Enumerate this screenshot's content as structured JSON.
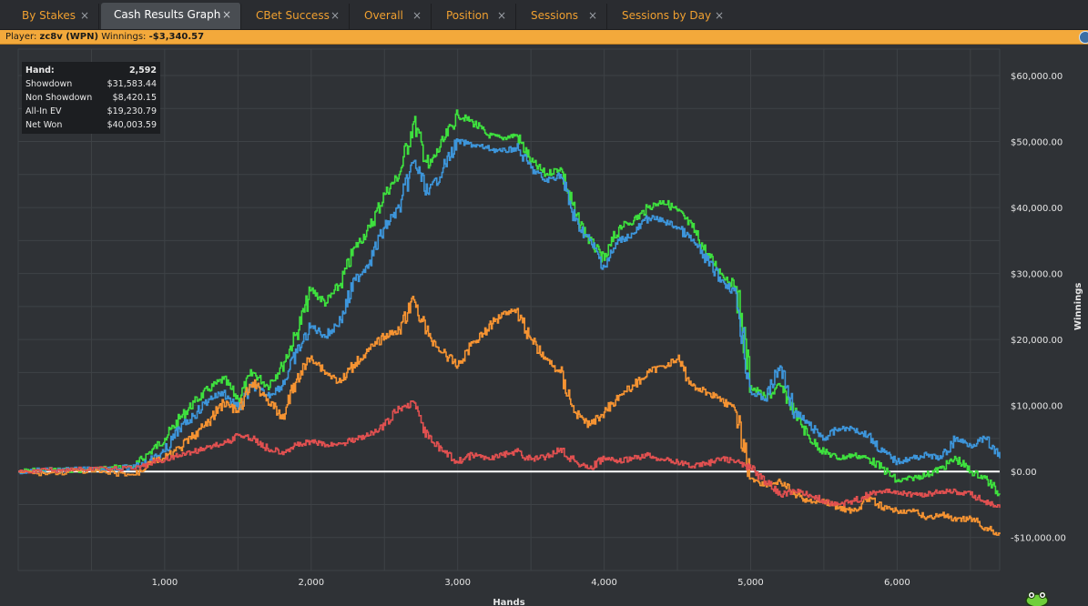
{
  "tabs": [
    {
      "label": "By Stakes",
      "active": false
    },
    {
      "label": "Cash Results Graph",
      "active": true
    },
    {
      "label": "CBet Success",
      "active": false
    },
    {
      "label": "Overall",
      "active": false
    },
    {
      "label": "Position",
      "active": false
    },
    {
      "label": "Sessions",
      "active": false
    },
    {
      "label": "Sessions by Day",
      "active": false
    }
  ],
  "tab_close_glyph": "×",
  "player_bar": {
    "player_label": "Player:",
    "player_name": "zc8v (WPN)",
    "winnings_label": "Winnings:",
    "winnings_value": "-$3,340.57"
  },
  "stats": [
    {
      "label": "Hand:",
      "value": "2,592"
    },
    {
      "label": "Showdown",
      "value": "$31,583.44"
    },
    {
      "label": "Non Showdown",
      "value": "$8,420.15"
    },
    {
      "label": "All-In EV",
      "value": "$19,230.79"
    },
    {
      "label": "Net Won",
      "value": "$40,003.59"
    }
  ],
  "colors": {
    "net_won": "#3ee03e",
    "all_in_ev": "#3d95da",
    "showdown": "#f59332",
    "non_showdown": "#e05050",
    "zero_line": "#ffffff",
    "player_bar": "#f3a93b",
    "tab_text": "#f0a030"
  },
  "icons": {
    "tab_close": "close-icon",
    "logo": "frog-logo-icon"
  },
  "chart_data": {
    "type": "line",
    "xlabel": "Hands",
    "ylabel": "Winnings",
    "xlim": [
      0,
      6700
    ],
    "ylim": [
      -15000,
      64000
    ],
    "xticks": [
      {
        "value": 1000,
        "label": "1,000"
      },
      {
        "value": 2000,
        "label": "2,000"
      },
      {
        "value": 3000,
        "label": "3,000"
      },
      {
        "value": 4000,
        "label": "4,000"
      },
      {
        "value": 5000,
        "label": "5,000"
      },
      {
        "value": 6000,
        "label": "6,000"
      }
    ],
    "yticks": [
      {
        "value": 60000,
        "label": "$60,000.00"
      },
      {
        "value": 50000,
        "label": "$50,000.00"
      },
      {
        "value": 40000,
        "label": "$40,000.00"
      },
      {
        "value": 30000,
        "label": "$30,000.00"
      },
      {
        "value": 20000,
        "label": "$20,000.00"
      },
      {
        "value": 10000,
        "label": "$10,000.00"
      },
      {
        "value": 0,
        "label": "$0.00"
      },
      {
        "value": -10000,
        "label": "-$10,000.00"
      }
    ],
    "grid": true,
    "x": [
      0,
      200,
      400,
      600,
      800,
      900,
      1000,
      1100,
      1200,
      1300,
      1400,
      1500,
      1600,
      1700,
      1800,
      1900,
      2000,
      2100,
      2200,
      2300,
      2400,
      2500,
      2600,
      2700,
      2800,
      2900,
      3000,
      3100,
      3200,
      3300,
      3400,
      3500,
      3600,
      3700,
      3800,
      3900,
      4000,
      4100,
      4200,
      4300,
      4400,
      4500,
      4600,
      4700,
      4800,
      4900,
      5000,
      5100,
      5200,
      5300,
      5400,
      5500,
      5600,
      5700,
      5800,
      5900,
      6000,
      6100,
      6200,
      6300,
      6400,
      6500,
      6600,
      6700
    ],
    "series": [
      {
        "key": "net_won",
        "values": [
          0,
          300,
          200,
          500,
          900,
          3000,
          5000,
          8000,
          10500,
          12500,
          14000,
          11000,
          15000,
          13000,
          16000,
          21000,
          27500,
          25500,
          28500,
          34000,
          37000,
          42000,
          45000,
          53000,
          46000,
          50000,
          54000,
          53000,
          51000,
          50500,
          51000,
          47000,
          45000,
          46000,
          39000,
          35000,
          32000,
          37000,
          38000,
          40000,
          41000,
          39500,
          37000,
          33000,
          30000,
          28000,
          13000,
          11000,
          13000,
          9000,
          5000,
          3000,
          2000,
          2500,
          2000,
          500,
          -1500,
          -1000,
          -500,
          500,
          2000,
          0,
          -1000,
          -3500
        ]
      },
      {
        "key": "all_in_ev",
        "values": [
          0,
          200,
          300,
          400,
          700,
          1800,
          3000,
          6500,
          8500,
          11000,
          12000,
          9500,
          13000,
          11500,
          13000,
          18000,
          22000,
          20500,
          23000,
          29000,
          32000,
          37000,
          40000,
          47000,
          42000,
          46000,
          50000,
          49500,
          49000,
          48500,
          49000,
          46000,
          44000,
          45000,
          38000,
          35000,
          31000,
          35000,
          36000,
          38500,
          38000,
          37000,
          35000,
          32000,
          29000,
          27000,
          12000,
          11000,
          16000,
          9000,
          7000,
          5000,
          6500,
          6500,
          5500,
          3000,
          1500,
          2000,
          2500,
          2000,
          5000,
          4000,
          5000,
          2000
        ]
      },
      {
        "key": "showdown",
        "values": [
          0,
          -300,
          100,
          -200,
          -500,
          1500,
          2000,
          3500,
          5500,
          7500,
          10500,
          9000,
          13500,
          11000,
          8000,
          14000,
          17500,
          15000,
          13500,
          16500,
          18500,
          20500,
          21500,
          26000,
          20500,
          18000,
          16000,
          19500,
          21500,
          24000,
          24500,
          20000,
          17000,
          15000,
          9000,
          7000,
          9000,
          11500,
          13000,
          15000,
          16000,
          17000,
          13000,
          12000,
          11000,
          9000,
          -1000,
          -2000,
          -1500,
          -3500,
          -4500,
          -4500,
          -5500,
          -6000,
          -4000,
          -5500,
          -6000,
          -6000,
          -7000,
          -6500,
          -7500,
          -7000,
          -8500,
          -9500
        ]
      },
      {
        "key": "non_showdown",
        "values": [
          0,
          200,
          300,
          400,
          500,
          1200,
          1800,
          2500,
          3000,
          3800,
          4200,
          5500,
          5000,
          3500,
          3000,
          4000,
          4500,
          4000,
          4200,
          5000,
          5500,
          7000,
          9500,
          10500,
          5000,
          3000,
          1500,
          2500,
          2000,
          2500,
          3000,
          1800,
          2200,
          3500,
          1500,
          500,
          2000,
          1500,
          2000,
          2500,
          1800,
          1500,
          800,
          1200,
          2000,
          1500,
          500,
          -1500,
          -3500,
          -3000,
          -3500,
          -4500,
          -5000,
          -4500,
          -3500,
          -3000,
          -3000,
          -3500,
          -3500,
          -3000,
          -3000,
          -3500,
          -4500,
          -5500
        ]
      }
    ]
  }
}
